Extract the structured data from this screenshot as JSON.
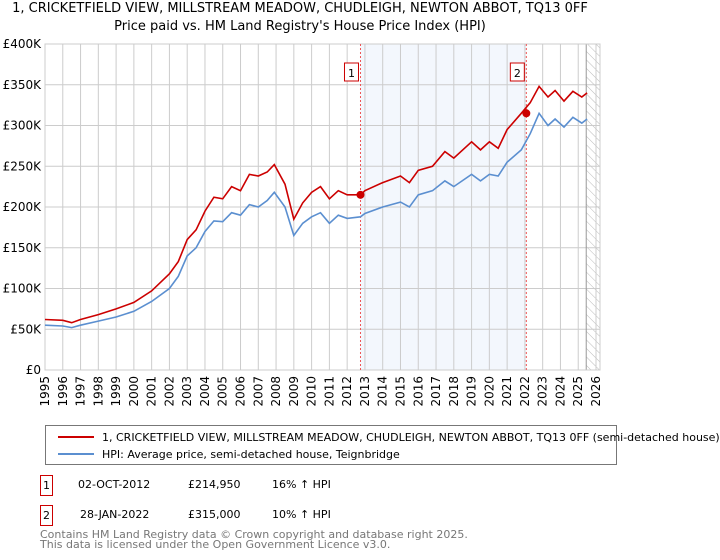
{
  "title": "1, CRICKETFIELD VIEW, MILLSTREAM MEADOW, CHUDLEIGH, NEWTON ABBOT, TQ13 0FF",
  "subtitle": "Price paid vs. HM Land Registry's House Price Index (HPI)",
  "chart_data": {
    "type": "line",
    "title": "Price paid vs. HM Land Registry's House Price Index (HPI)",
    "ylim": [
      0,
      400000
    ],
    "xlim": [
      1995,
      2026
    ],
    "y_ticks": [
      "£0",
      "£50K",
      "£100K",
      "£150K",
      "£200K",
      "£250K",
      "£300K",
      "£350K",
      "£400K"
    ],
    "x_ticks": [
      "1995",
      "1996",
      "1997",
      "1998",
      "1999",
      "2000",
      "2001",
      "2002",
      "2003",
      "2004",
      "2005",
      "2006",
      "2007",
      "2008",
      "2009",
      "2010",
      "2011",
      "2012",
      "2013",
      "2014",
      "2015",
      "2016",
      "2017",
      "2018",
      "2019",
      "2020",
      "2021",
      "2022",
      "2023",
      "2024",
      "2025",
      "2026"
    ],
    "grid": true,
    "series": [
      {
        "name": "1, CRICKETFIELD VIEW, MILLSTREAM MEADOW, CHUDLEIGH, NEWTON ABBOT, TQ13 0FF (semi-detached house)",
        "color": "#cc0000",
        "x": [
          1995,
          1996,
          1996.5,
          1997,
          1998,
          1999,
          2000,
          2001,
          2002,
          2002.5,
          2003,
          2003.5,
          2004,
          2004.5,
          2005,
          2005.5,
          2006,
          2006.5,
          2007,
          2007.5,
          2007.9,
          2008.5,
          2009.0,
          2009.5,
          2010,
          2010.5,
          2011,
          2011.5,
          2012,
          2012.75,
          2013,
          2014,
          2015,
          2015.5,
          2016,
          2016.8,
          2017.5,
          2018,
          2019,
          2019.5,
          2020,
          2020.5,
          2021,
          2021.8,
          2022.3,
          2022.8,
          2023.3,
          2023.7,
          2024.2,
          2024.7,
          2025.2,
          2025.5
        ],
        "y": [
          62000,
          61000,
          58000,
          62000,
          68000,
          75000,
          83000,
          97000,
          118000,
          133000,
          160000,
          172000,
          195000,
          212000,
          210000,
          225000,
          220000,
          240000,
          238000,
          243000,
          252000,
          228000,
          185000,
          205000,
          218000,
          225000,
          210000,
          220000,
          215000,
          214950,
          220000,
          230000,
          238000,
          230000,
          245000,
          250000,
          268000,
          260000,
          280000,
          270000,
          280000,
          272000,
          295000,
          315000,
          328000,
          348000,
          335000,
          343000,
          330000,
          342000,
          335000,
          340000
        ]
      },
      {
        "name": "HPI: Average price, semi-detached house, Teignbridge",
        "color": "#5b8fd0",
        "x": [
          1995,
          1996,
          1996.5,
          1997,
          1998,
          1999,
          2000,
          2001,
          2002,
          2002.5,
          2003,
          2003.5,
          2004,
          2004.5,
          2005,
          2005.5,
          2006,
          2006.5,
          2007,
          2007.5,
          2007.9,
          2008.5,
          2009.0,
          2009.5,
          2010,
          2010.5,
          2011,
          2011.5,
          2012,
          2012.75,
          2013,
          2014,
          2015,
          2015.5,
          2016,
          2016.8,
          2017.5,
          2018,
          2019,
          2019.5,
          2020,
          2020.5,
          2021,
          2021.8,
          2022.3,
          2022.8,
          2023.3,
          2023.7,
          2024.2,
          2024.7,
          2025.2,
          2025.5
        ],
        "y": [
          55000,
          54000,
          52000,
          55000,
          60000,
          65000,
          72000,
          84000,
          100000,
          115000,
          140000,
          150000,
          170000,
          183000,
          182000,
          193000,
          190000,
          203000,
          200000,
          208000,
          218000,
          200000,
          165000,
          180000,
          188000,
          193000,
          180000,
          190000,
          186000,
          188000,
          192000,
          200000,
          206000,
          200000,
          215000,
          220000,
          232000,
          225000,
          240000,
          232000,
          240000,
          238000,
          255000,
          270000,
          290000,
          315000,
          300000,
          308000,
          298000,
          310000,
          303000,
          308000
        ]
      }
    ],
    "annotations": [
      {
        "label": "1",
        "x": 2012.75,
        "y": 214950
      },
      {
        "label": "2",
        "x": 2022.08,
        "y": 315000
      }
    ],
    "legend_position": "below"
  },
  "legend": {
    "red": "1, CRICKETFIELD VIEW, MILLSTREAM MEADOW, CHUDLEIGH, NEWTON ABBOT, TQ13 0FF (semi-detached house)",
    "blue": "HPI: Average price, semi-detached house, Teignbridge"
  },
  "transactions": [
    {
      "num": "1",
      "date": "02-OCT-2012",
      "price": "£214,950",
      "hpi": "16% ↑ HPI"
    },
    {
      "num": "2",
      "date": "28-JAN-2022",
      "price": "£315,000",
      "hpi": "10% ↑ HPI"
    }
  ],
  "footer": {
    "line1": "Contains HM Land Registry data © Crown copyright and database right 2025.",
    "line2": "This data is licensed under the Open Government Licence v3.0."
  }
}
